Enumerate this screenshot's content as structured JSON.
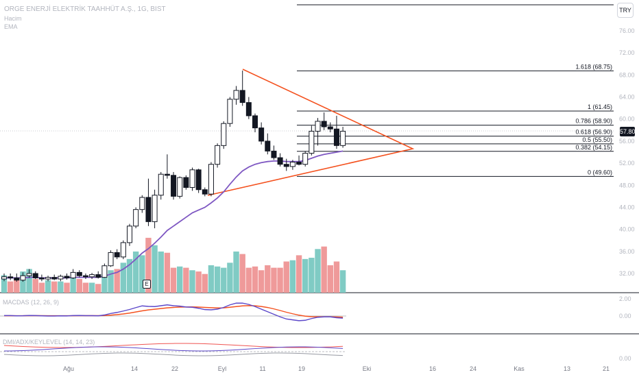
{
  "header": {
    "title": "ORGE ENERJİ ELEKTRİK TAAHHÜT A.Ş., 1G, BIST",
    "volume_label": "Hacim",
    "ema_label": "EMA"
  },
  "currency_button": "TRY",
  "last_price_tag": "57.80",
  "earnings_badge": "E",
  "macd_label": "MACDAS (12, 26, 9)",
  "dmi_label": "DMI/ADX/KEYLEVEL (14, 14, 23)",
  "price_axis": [
    "76.00",
    "72.00",
    "68.00",
    "64.00",
    "60.00",
    "56.00",
    "52.00",
    "48.00",
    "44.00",
    "40.00",
    "36.00",
    "32.00"
  ],
  "macd_axis": [
    "2.00",
    "0.00"
  ],
  "dmi_axis": [
    "0.00"
  ],
  "time_axis": [
    "Ağu",
    "14",
    "22",
    "Eyl",
    "11",
    "19",
    "Eki",
    "16",
    "24",
    "Kas",
    "13",
    "21"
  ],
  "fib_levels": [
    {
      "label": "1.618 (68.75)",
      "price": 68.75
    },
    {
      "label": "1 (61.45)",
      "price": 61.45
    },
    {
      "label": "0.786 (58.90)",
      "price": 58.9
    },
    {
      "label": "0.618 (56.90)",
      "price": 56.9
    },
    {
      "label": "0.5 (55.50)",
      "price": 55.5
    },
    {
      "label": "0.382 (54.15)",
      "price": 54.15
    },
    {
      "label": "0 (49.60)",
      "price": 49.6
    }
  ],
  "colors": {
    "up": "#26a69a",
    "down": "#ef5350",
    "candle_up": "#ffffff",
    "candle_down": "#131722",
    "vol_up": "#80cbc4",
    "vol_down": "#ef9a9a",
    "ema": "#7e57c2",
    "triangle": "#f4511e",
    "fib": "#131722",
    "macd": "#5b47c9",
    "signal": "#f4511e"
  },
  "chart_data": {
    "type": "candlestick",
    "title": "ORGE ENERJİ ELEKTRİK TAAHHÜT A.Ş., 1G, BIST",
    "ylim": [
      30,
      78
    ],
    "candles": [
      {
        "o": 31.0,
        "h": 32.0,
        "l": 30.6,
        "c": 31.4
      },
      {
        "o": 31.4,
        "h": 32.0,
        "l": 30.8,
        "c": 31.2
      },
      {
        "o": 31.2,
        "h": 32.0,
        "l": 30.5,
        "c": 30.8
      },
      {
        "o": 30.8,
        "h": 32.2,
        "l": 30.5,
        "c": 31.6
      },
      {
        "o": 31.6,
        "h": 32.8,
        "l": 31.2,
        "c": 32.0
      },
      {
        "o": 32.0,
        "h": 32.4,
        "l": 31.0,
        "c": 31.2
      },
      {
        "o": 31.2,
        "h": 31.8,
        "l": 30.6,
        "c": 31.0
      },
      {
        "o": 31.0,
        "h": 31.6,
        "l": 30.6,
        "c": 31.3
      },
      {
        "o": 31.3,
        "h": 31.8,
        "l": 30.8,
        "c": 31.0
      },
      {
        "o": 31.0,
        "h": 31.8,
        "l": 30.6,
        "c": 31.5
      },
      {
        "o": 31.5,
        "h": 32.0,
        "l": 30.9,
        "c": 31.2
      },
      {
        "o": 31.2,
        "h": 32.8,
        "l": 31.0,
        "c": 32.2
      },
      {
        "o": 32.2,
        "h": 32.6,
        "l": 31.3,
        "c": 31.6
      },
      {
        "o": 31.6,
        "h": 32.0,
        "l": 31.0,
        "c": 31.4
      },
      {
        "o": 31.4,
        "h": 32.1,
        "l": 31.0,
        "c": 31.8
      },
      {
        "o": 31.8,
        "h": 32.4,
        "l": 31.1,
        "c": 31.3
      },
      {
        "o": 31.3,
        "h": 33.8,
        "l": 31.2,
        "c": 33.4
      },
      {
        "o": 33.4,
        "h": 36.2,
        "l": 33.2,
        "c": 35.8
      },
      {
        "o": 35.8,
        "h": 36.4,
        "l": 34.6,
        "c": 35.0
      },
      {
        "o": 35.0,
        "h": 38.0,
        "l": 34.6,
        "c": 37.6
      },
      {
        "o": 37.6,
        "h": 41.0,
        "l": 37.0,
        "c": 40.6
      },
      {
        "o": 40.6,
        "h": 44.0,
        "l": 40.2,
        "c": 43.6
      },
      {
        "o": 43.6,
        "h": 46.2,
        "l": 43.0,
        "c": 45.8
      },
      {
        "o": 45.8,
        "h": 49.2,
        "l": 40.6,
        "c": 41.4
      },
      {
        "o": 41.4,
        "h": 47.2,
        "l": 40.2,
        "c": 46.2
      },
      {
        "o": 46.2,
        "h": 50.4,
        "l": 45.4,
        "c": 50.0
      },
      {
        "o": 50.0,
        "h": 53.6,
        "l": 49.2,
        "c": 49.8
      },
      {
        "o": 49.8,
        "h": 50.4,
        "l": 45.4,
        "c": 46.0
      },
      {
        "o": 46.0,
        "h": 49.6,
        "l": 45.6,
        "c": 49.4
      },
      {
        "o": 49.4,
        "h": 49.8,
        "l": 47.2,
        "c": 47.6
      },
      {
        "o": 47.6,
        "h": 51.2,
        "l": 47.0,
        "c": 50.8
      },
      {
        "o": 50.8,
        "h": 51.0,
        "l": 46.6,
        "c": 47.2
      },
      {
        "o": 47.2,
        "h": 47.6,
        "l": 46.0,
        "c": 46.4
      },
      {
        "o": 46.4,
        "h": 52.2,
        "l": 46.0,
        "c": 51.8
      },
      {
        "o": 51.8,
        "h": 55.6,
        "l": 51.2,
        "c": 55.2
      },
      {
        "o": 55.2,
        "h": 59.6,
        "l": 54.6,
        "c": 59.2
      },
      {
        "o": 59.2,
        "h": 64.0,
        "l": 58.6,
        "c": 63.6
      },
      {
        "o": 63.6,
        "h": 66.0,
        "l": 62.6,
        "c": 65.2
      },
      {
        "o": 65.2,
        "h": 68.8,
        "l": 62.4,
        "c": 63.0
      },
      {
        "o": 63.0,
        "h": 64.0,
        "l": 60.0,
        "c": 60.6
      },
      {
        "o": 60.6,
        "h": 61.0,
        "l": 57.6,
        "c": 58.4
      },
      {
        "o": 58.4,
        "h": 59.4,
        "l": 55.4,
        "c": 56.0
      },
      {
        "o": 56.0,
        "h": 57.4,
        "l": 53.6,
        "c": 54.2
      },
      {
        "o": 54.2,
        "h": 55.2,
        "l": 52.6,
        "c": 53.0
      },
      {
        "o": 53.0,
        "h": 53.8,
        "l": 51.4,
        "c": 51.8
      },
      {
        "o": 51.8,
        "h": 52.8,
        "l": 50.6,
        "c": 51.4
      },
      {
        "o": 51.4,
        "h": 52.6,
        "l": 50.8,
        "c": 52.2
      },
      {
        "o": 52.2,
        "h": 53.4,
        "l": 51.6,
        "c": 51.8
      },
      {
        "o": 51.8,
        "h": 54.2,
        "l": 51.4,
        "c": 53.8
      },
      {
        "o": 53.8,
        "h": 58.8,
        "l": 53.4,
        "c": 57.8
      },
      {
        "o": 57.8,
        "h": 60.2,
        "l": 55.2,
        "c": 59.6
      },
      {
        "o": 59.6,
        "h": 61.2,
        "l": 58.0,
        "c": 58.6
      },
      {
        "o": 58.6,
        "h": 59.4,
        "l": 57.6,
        "c": 58.2
      },
      {
        "o": 58.2,
        "h": 60.6,
        "l": 54.6,
        "c": 55.2
      },
      {
        "o": 55.2,
        "h": 58.6,
        "l": 54.8,
        "c": 57.8
      }
    ],
    "volume": [
      14,
      9,
      11,
      17,
      19,
      11,
      8,
      10,
      9,
      9,
      8,
      12,
      11,
      8,
      8,
      7,
      15,
      18,
      19,
      24,
      27,
      33,
      30,
      44,
      38,
      33,
      32,
      20,
      21,
      20,
      18,
      17,
      15,
      22,
      21,
      20,
      24,
      33,
      31,
      20,
      21,
      18,
      22,
      20,
      20,
      25,
      26,
      30,
      27,
      28,
      35,
      37,
      22,
      25,
      18
    ],
    "ema": [
      31.2,
      31.2,
      31.2,
      31.2,
      31.3,
      31.3,
      31.2,
      31.2,
      31.2,
      31.2,
      31.2,
      31.3,
      31.3,
      31.3,
      31.3,
      31.3,
      31.5,
      31.9,
      32.2,
      32.8,
      33.6,
      34.6,
      35.7,
      36.5,
      37.5,
      38.6,
      39.8,
      40.6,
      41.4,
      42.2,
      43.0,
      43.5,
      44.0,
      44.8,
      45.7,
      46.8,
      48.2,
      49.5,
      50.6,
      51.3,
      51.8,
      52.1,
      52.3,
      52.4,
      52.4,
      52.3,
      52.3,
      52.3,
      52.5,
      52.9,
      53.3,
      53.6,
      53.8,
      54.0,
      54.2
    ],
    "macd": [
      0.05,
      0.05,
      0.02,
      0.03,
      0.06,
      0.05,
      0.02,
      0.0,
      0.0,
      0.02,
      0.01,
      0.05,
      0.06,
      0.04,
      0.04,
      0.02,
      0.12,
      0.3,
      0.42,
      0.58,
      0.76,
      0.98,
      1.18,
      1.12,
      1.1,
      1.2,
      1.3,
      1.2,
      1.15,
      1.05,
      1.02,
      0.9,
      0.75,
      0.72,
      0.8,
      1.0,
      1.3,
      1.5,
      1.5,
      1.35,
      1.1,
      0.8,
      0.5,
      0.2,
      -0.1,
      -0.35,
      -0.45,
      -0.55,
      -0.5,
      -0.3,
      -0.15,
      -0.1,
      -0.1,
      -0.2,
      -0.25
    ],
    "signal": [
      0.03,
      0.03,
      0.03,
      0.03,
      0.04,
      0.04,
      0.04,
      0.03,
      0.03,
      0.03,
      0.03,
      0.03,
      0.04,
      0.04,
      0.04,
      0.04,
      0.05,
      0.1,
      0.16,
      0.24,
      0.34,
      0.47,
      0.6,
      0.71,
      0.79,
      0.87,
      0.95,
      1.0,
      1.04,
      1.05,
      1.06,
      1.04,
      1.0,
      0.97,
      0.94,
      0.95,
      1.02,
      1.1,
      1.18,
      1.21,
      1.19,
      1.11,
      0.99,
      0.83,
      0.64,
      0.44,
      0.26,
      0.1,
      -0.02,
      -0.08,
      -0.09,
      -0.09,
      -0.09,
      -0.11,
      -0.14
    ]
  }
}
